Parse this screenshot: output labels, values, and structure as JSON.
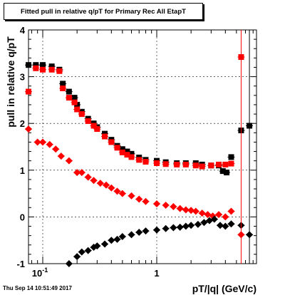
{
  "title": "Fitted pull in relative q/pT for Primary Rec All EtapT",
  "timestamp": "Thu Sep 14 10:51:49 2017",
  "chart_data": {
    "type": "scatter",
    "title": "Fitted pull in relative q/pT for Primary Rec All EtapT",
    "xlabel": "pT/|q| (GeV/c)",
    "ylabel": "pull in relative q/pT",
    "xscale": "log",
    "xlim": [
      0.075,
      7.5
    ],
    "ylim": [
      -1,
      4
    ],
    "x_ticks": [
      {
        "value": 0.1,
        "label": "10",
        "sup": "-1"
      },
      {
        "value": 1,
        "label": "1",
        "sup": ""
      }
    ],
    "y_ticks": [
      -1,
      0,
      1,
      2,
      3,
      4
    ],
    "series": [
      {
        "color": "#000000",
        "marker": "square",
        "points": [
          [
            0.075,
            3.25
          ],
          [
            0.087,
            3.25
          ],
          [
            0.1,
            3.25
          ],
          [
            0.12,
            3.22
          ],
          [
            0.14,
            3.15
          ],
          [
            0.15,
            2.85
          ],
          [
            0.17,
            2.68
          ],
          [
            0.19,
            2.55
          ],
          [
            0.2,
            2.4
          ],
          [
            0.22,
            2.25
          ],
          [
            0.25,
            2.1
          ],
          [
            0.28,
            2.0
          ],
          [
            0.3,
            1.92
          ],
          [
            0.35,
            1.78
          ],
          [
            0.4,
            1.65
          ],
          [
            0.45,
            1.52
          ],
          [
            0.5,
            1.45
          ],
          [
            0.55,
            1.4
          ],
          [
            0.6,
            1.35
          ],
          [
            0.7,
            1.27
          ],
          [
            0.8,
            1.22
          ],
          [
            1.0,
            1.2
          ],
          [
            1.2,
            1.17
          ],
          [
            1.5,
            1.15
          ],
          [
            1.8,
            1.15
          ],
          [
            2.2,
            1.15
          ],
          [
            2.5,
            1.12
          ],
          [
            3.0,
            1.1
          ],
          [
            3.5,
            1.1
          ],
          [
            3.8,
            0.98
          ],
          [
            4.1,
            0.95
          ],
          [
            4.5,
            1.28
          ],
          [
            5.5,
            1.85
          ],
          [
            6.5,
            1.95
          ]
        ]
      },
      {
        "color": "#ff0000",
        "marker": "square",
        "points": [
          [
            0.075,
            2.68
          ],
          [
            0.087,
            3.18
          ],
          [
            0.1,
            3.15
          ],
          [
            0.12,
            3.15
          ],
          [
            0.14,
            3.12
          ],
          [
            0.15,
            2.75
          ],
          [
            0.17,
            2.55
          ],
          [
            0.19,
            2.45
          ],
          [
            0.2,
            2.3
          ],
          [
            0.22,
            2.2
          ],
          [
            0.25,
            2.05
          ],
          [
            0.28,
            1.95
          ],
          [
            0.3,
            1.88
          ],
          [
            0.35,
            1.72
          ],
          [
            0.4,
            1.6
          ],
          [
            0.45,
            1.48
          ],
          [
            0.5,
            1.38
          ],
          [
            0.55,
            1.33
          ],
          [
            0.6,
            1.28
          ],
          [
            0.7,
            1.22
          ],
          [
            0.8,
            1.18
          ],
          [
            1.0,
            1.15
          ],
          [
            1.2,
            1.13
          ],
          [
            1.5,
            1.12
          ],
          [
            1.8,
            1.12
          ],
          [
            2.2,
            1.1
          ],
          [
            2.5,
            1.08
          ],
          [
            3.0,
            1.1
          ],
          [
            3.5,
            1.12
          ],
          [
            4.0,
            1.12
          ],
          [
            4.5,
            1.14
          ],
          [
            5.5,
            3.42
          ]
        ]
      },
      {
        "color": "#ff0000",
        "marker": "diamond",
        "points": [
          [
            0.075,
            1.88
          ],
          [
            0.09,
            1.6
          ],
          [
            0.1,
            1.6
          ],
          [
            0.115,
            1.55
          ],
          [
            0.13,
            1.45
          ],
          [
            0.145,
            1.3
          ],
          [
            0.17,
            1.2
          ],
          [
            0.2,
            0.95
          ],
          [
            0.22,
            0.95
          ],
          [
            0.25,
            0.85
          ],
          [
            0.28,
            0.78
          ],
          [
            0.32,
            0.72
          ],
          [
            0.36,
            0.68
          ],
          [
            0.4,
            0.62
          ],
          [
            0.45,
            0.55
          ],
          [
            0.5,
            0.5
          ],
          [
            0.6,
            0.45
          ],
          [
            0.7,
            0.38
          ],
          [
            0.8,
            0.33
          ],
          [
            1.0,
            0.28
          ],
          [
            1.2,
            0.25
          ],
          [
            1.4,
            0.22
          ],
          [
            1.6,
            0.18
          ],
          [
            1.8,
            0.15
          ],
          [
            2.0,
            0.14
          ],
          [
            2.2,
            0.12
          ],
          [
            2.5,
            0.08
          ],
          [
            2.8,
            0.05
          ],
          [
            3.1,
            0.02
          ],
          [
            3.5,
            0.05
          ],
          [
            4.0,
            0.0
          ],
          [
            4.5,
            0.12
          ],
          [
            5.5,
            -0.38
          ]
        ]
      },
      {
        "color": "#000000",
        "marker": "diamond",
        "points": [
          [
            0.17,
            -1.0
          ],
          [
            0.2,
            -0.85
          ],
          [
            0.22,
            -0.75
          ],
          [
            0.25,
            -0.72
          ],
          [
            0.28,
            -0.65
          ],
          [
            0.3,
            -0.62
          ],
          [
            0.35,
            -0.58
          ],
          [
            0.4,
            -0.5
          ],
          [
            0.45,
            -0.48
          ],
          [
            0.5,
            -0.42
          ],
          [
            0.6,
            -0.38
          ],
          [
            0.7,
            -0.33
          ],
          [
            0.8,
            -0.3
          ],
          [
            1.0,
            -0.28
          ],
          [
            1.2,
            -0.25
          ],
          [
            1.4,
            -0.23
          ],
          [
            1.6,
            -0.22
          ],
          [
            1.8,
            -0.2
          ],
          [
            2.0,
            -0.18
          ],
          [
            2.3,
            -0.16
          ],
          [
            2.6,
            -0.12
          ],
          [
            2.9,
            -0.08
          ],
          [
            3.2,
            -0.05
          ],
          [
            3.6,
            -0.18
          ],
          [
            4.0,
            -0.2
          ],
          [
            4.5,
            -0.15
          ],
          [
            5.5,
            -0.18
          ],
          [
            6.5,
            -0.38
          ]
        ]
      }
    ]
  }
}
